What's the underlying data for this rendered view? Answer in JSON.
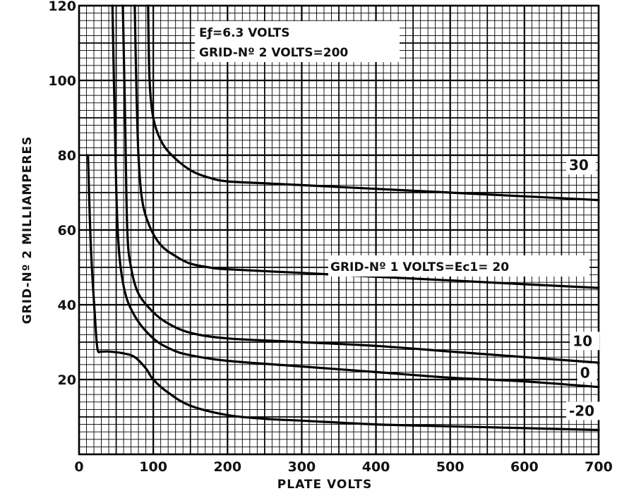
{
  "chart_data": {
    "type": "line",
    "title": "",
    "xlabel": "PLATE VOLTS",
    "ylabel": "GRID-Nº 2 MILLIAMPERES",
    "xlim": [
      0,
      700
    ],
    "ylim": [
      0,
      120
    ],
    "x_ticks": [
      0,
      100,
      200,
      300,
      400,
      500,
      600,
      700
    ],
    "y_ticks": [
      20,
      40,
      60,
      80,
      100,
      120
    ],
    "x_tick_labels": [
      "0",
      "100",
      "200",
      "300",
      "400",
      "500",
      "600",
      "700"
    ],
    "y_tick_labels": [
      "20",
      "40",
      "60",
      "80",
      "100",
      "120"
    ],
    "grid": true,
    "legend": "none",
    "annotations": {
      "line1": "Eƒ=6.3 VOLTS",
      "line2": "GRID-Nº 2 VOLTS=200",
      "family_label": "GRID-Nº 1 VOLTS=Ec1= 20"
    },
    "series": [
      {
        "name": "30",
        "x": [
          93,
          95,
          100,
          110,
          125,
          150,
          175,
          200,
          250,
          300,
          400,
          500,
          600,
          650,
          700
        ],
        "y": [
          120,
          100,
          90,
          84,
          80,
          76,
          74,
          73,
          72.5,
          72,
          71,
          70,
          69,
          68.5,
          68
        ]
      },
      {
        "name": "20",
        "x": [
          75,
          77,
          80,
          85,
          95,
          110,
          130,
          150,
          175,
          200,
          300,
          400,
          500,
          600,
          700
        ],
        "y": [
          120,
          100,
          80,
          68,
          61,
          56,
          53,
          51,
          50,
          49.5,
          48.5,
          47.5,
          46.5,
          45.5,
          44.5
        ]
      },
      {
        "name": "10",
        "x": [
          59,
          62,
          65,
          70,
          80,
          100,
          120,
          150,
          200,
          300,
          400,
          500,
          600,
          700
        ],
        "y": [
          120,
          90,
          60,
          50,
          43,
          38,
          35,
          32.5,
          31,
          30,
          29,
          27.5,
          26,
          24.5
        ]
      },
      {
        "name": "0",
        "x": [
          45,
          48,
          52,
          60,
          75,
          100,
          125,
          150,
          200,
          300,
          400,
          500,
          600,
          700
        ],
        "y": [
          120,
          90,
          60,
          45,
          37,
          31,
          28,
          26.5,
          25,
          23.5,
          22,
          20.5,
          19.5,
          18
        ]
      },
      {
        "name": "-20",
        "x": [
          12,
          16,
          22,
          25,
          30,
          40,
          60,
          75,
          90,
          100,
          120,
          150,
          200,
          250,
          300,
          400,
          500,
          600,
          700
        ],
        "y": [
          80,
          55,
          35,
          28,
          27.5,
          27.5,
          27,
          26,
          23,
          20,
          16.5,
          13,
          10.5,
          9.5,
          9,
          8,
          7.5,
          7,
          6.5
        ]
      }
    ],
    "curve_labels": [
      "30",
      "20",
      "10",
      "0",
      "-20"
    ]
  }
}
